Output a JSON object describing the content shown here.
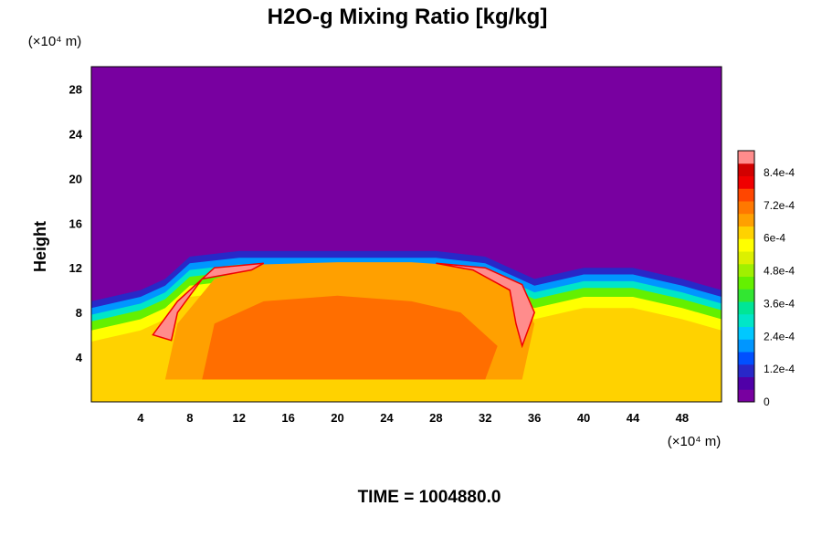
{
  "chart_data": {
    "type": "heatmap",
    "title": "H2O-g Mixing Ratio [kg/kg]",
    "xlabel": "",
    "ylabel": "Height",
    "x_unit_label": "(×10⁴ m)",
    "y_unit_label": "(×10⁴ m)",
    "xlim": [
      0,
      51.2
    ],
    "ylim": [
      0,
      30
    ],
    "x_ticks": [
      4,
      8,
      12,
      16,
      20,
      24,
      28,
      32,
      36,
      40,
      44,
      48
    ],
    "y_ticks": [
      4,
      8,
      12,
      16,
      20,
      24,
      28
    ],
    "x_tick_labels": [
      "4",
      "8",
      "12",
      "16",
      "20",
      "24",
      "28",
      "32",
      "36",
      "40",
      "44",
      "48"
    ],
    "y_tick_labels": [
      "4",
      "8",
      "12",
      "16",
      "20",
      "24",
      "28"
    ],
    "colorbar": {
      "range": [
        0,
        0.00092
      ],
      "tick_values": [
        0,
        0.00012,
        0.00024,
        0.00036,
        0.00048,
        0.0006,
        0.00072,
        0.00084
      ],
      "tick_labels": [
        "0",
        "1.2e-4",
        "2.4e-4",
        "3.6e-4",
        "4.8e-4",
        "6e-4",
        "7.2e-4",
        "8.4e-4"
      ],
      "colors": [
        "#7800a0",
        "#5000a8",
        "#2828c8",
        "#0050ff",
        "#0096ff",
        "#00c8ff",
        "#00e6c8",
        "#00e696",
        "#32e632",
        "#64f000",
        "#a0f000",
        "#dcf000",
        "#ffff00",
        "#ffd200",
        "#ffa000",
        "#ff7800",
        "#ff4600",
        "#f00000",
        "#d20000",
        "#ff8c8c"
      ]
    },
    "field_profile": {
      "x": [
        0,
        4,
        6,
        8,
        12,
        16,
        20,
        24,
        28,
        32,
        34,
        36,
        40,
        44,
        48,
        51.2
      ],
      "cloud_top_height": [
        9,
        10,
        11,
        13,
        13.5,
        13.5,
        13.5,
        13.5,
        13.5,
        13,
        12,
        11,
        12,
        12,
        11,
        10
      ]
    },
    "background_value": 0,
    "peak_value": 0.00092
  },
  "footer": {
    "time_label": "TIME = 1004880.0"
  }
}
